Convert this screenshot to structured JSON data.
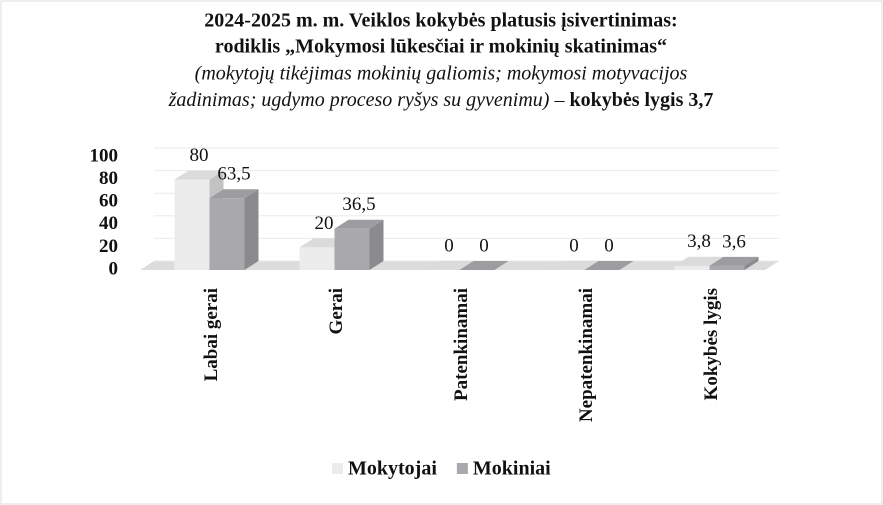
{
  "chart_data": {
    "type": "bar3d",
    "title": [
      "2024-2025 m. m. Veiklos kokybės platusis įsivertinimas:",
      "rodiklis „Mokymosi lūkesčiai ir mokinių skatinimas“"
    ],
    "subtitle": [
      "(mokytojų tikėjimas mokinių galiomis; mokymosi motyvacijos",
      "žadinimas;  ugdymo proceso ryšys su gyvenimu) –"
    ],
    "subtitle_bold": "kokybės lygis 3,7",
    "categories": [
      "Labai gerai",
      "Gerai",
      "Patenkinamai",
      "Nepatenkinamai",
      "Kokybės lygis"
    ],
    "series": [
      {
        "name": "Mokytojai",
        "color": "#ececec",
        "values": [
          80,
          20,
          0,
          0,
          3.8
        ],
        "value_labels": [
          "80",
          "20",
          "0",
          "0",
          "3,8"
        ]
      },
      {
        "name": "Mokiniai",
        "color": "#a9a9ad",
        "values": [
          63.5,
          36.5,
          0,
          0,
          3.6
        ],
        "value_labels": [
          "63,5",
          "36,5",
          "0",
          "0",
          "3,6"
        ]
      }
    ],
    "ylim": [
      0,
      100
    ],
    "yticks": [
      0,
      20,
      40,
      60,
      80,
      100
    ],
    "grid": true,
    "legend": "bottom"
  }
}
